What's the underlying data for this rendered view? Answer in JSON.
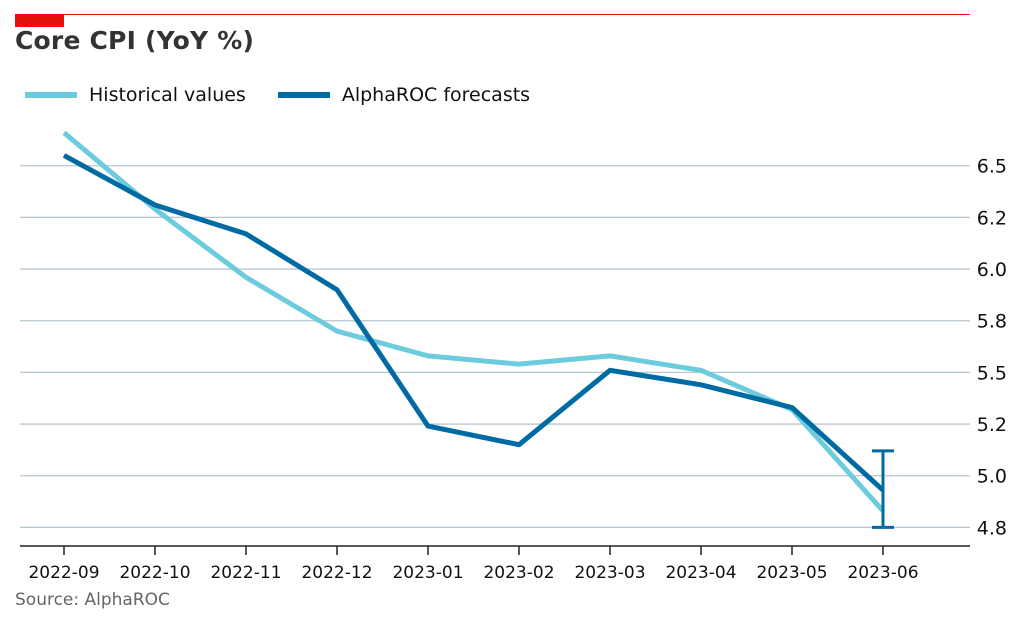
{
  "title": "Core CPI (YoY %)",
  "source": "Source: AlphaROC",
  "colors": {
    "historical": "#6ccbdc",
    "forecast": "#006ba2",
    "accent": "#e3120b",
    "grid": "#b7c6cf"
  },
  "chart_data": {
    "type": "line",
    "categories": [
      "2022-09",
      "2022-10",
      "2022-11",
      "2022-12",
      "2023-01",
      "2023-02",
      "2023-03",
      "2023-04",
      "2023-05",
      "2023-06"
    ],
    "y_ticks": [
      {
        "value": 4.75,
        "label": "4.8"
      },
      {
        "value": 5.0,
        "label": "5.0"
      },
      {
        "value": 5.25,
        "label": "5.2"
      },
      {
        "value": 5.5,
        "label": "5.5"
      },
      {
        "value": 5.75,
        "label": "5.8"
      },
      {
        "value": 6.0,
        "label": "6.0"
      },
      {
        "value": 6.25,
        "label": "6.2"
      },
      {
        "value": 6.5,
        "label": "6.5"
      }
    ],
    "ylim": [
      4.66,
      6.76
    ],
    "grid": true,
    "legend_position": "top-left",
    "series": [
      {
        "name": "Historical values",
        "values": [
          6.66,
          6.29,
          5.96,
          5.7,
          5.58,
          5.54,
          5.58,
          5.51,
          5.32,
          4.83
        ]
      },
      {
        "name": "AlphaROC forecasts",
        "values": [
          6.55,
          6.31,
          6.17,
          5.9,
          5.24,
          5.15,
          5.51,
          5.44,
          5.33,
          4.93
        ]
      }
    ],
    "error_bar": {
      "category": "2023-06",
      "low": 4.75,
      "high": 5.12
    }
  }
}
